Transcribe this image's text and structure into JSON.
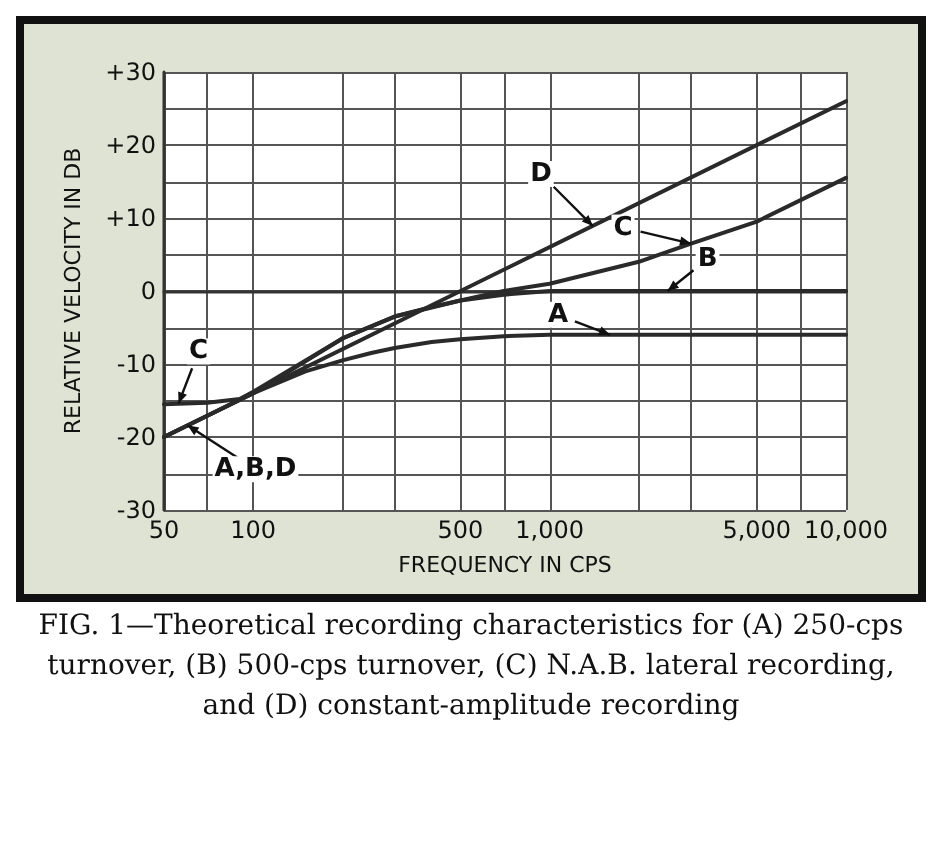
{
  "chart_data": {
    "type": "line",
    "xlabel": "FREQUENCY IN CPS",
    "ylabel": "RELATIVE VELOCITY IN DB",
    "log": "x",
    "grid": true,
    "marker": "none",
    "line_style": "solid",
    "xlim": [
      50,
      10000
    ],
    "xticks": [
      50,
      {
        "value": 70,
        "label": null
      },
      100,
      {
        "value": 200,
        "label": null
      },
      {
        "value": 300,
        "label": null
      },
      500,
      {
        "value": 700,
        "label": null
      },
      {
        "value": 1000,
        "label": "1,000"
      },
      {
        "value": 2000,
        "label": null
      },
      {
        "value": 3000,
        "label": null
      },
      {
        "value": 5000,
        "label": "5,000"
      },
      {
        "value": 7000,
        "label": null
      },
      {
        "value": 10000,
        "label": "10,000"
      }
    ],
    "ylim": [
      -30,
      30
    ],
    "yticks": [
      {
        "value": 30,
        "label": "+30"
      },
      {
        "value": 25,
        "label": null
      },
      {
        "value": 20,
        "label": "+20"
      },
      {
        "value": 15,
        "label": null
      },
      {
        "value": 10,
        "label": "+10"
      },
      {
        "value": 5,
        "label": null
      },
      0,
      {
        "value": -5,
        "label": null
      },
      -10,
      {
        "value": -15,
        "label": null
      },
      -20,
      {
        "value": -25,
        "label": null
      },
      -30
    ],
    "series": [
      {
        "color": "#2a2a2a",
        "x": [
          50,
          100,
          150,
          200,
          250,
          300,
          400,
          500,
          700,
          1000,
          2000,
          10000
        ],
        "values": [
          -20,
          -14,
          -11,
          -9.5,
          -8.5,
          -7.8,
          -7,
          -6.6,
          -6.2,
          -6,
          -6,
          -6
        ]
      },
      {
        "color": "#2a2a2a",
        "x": [
          50,
          100,
          200,
          300,
          400,
          500,
          700,
          1000,
          2000,
          10000
        ],
        "values": [
          -20,
          -14,
          -6.5,
          -3.5,
          -2.2,
          -1.3,
          -0.5,
          0,
          0,
          0
        ]
      },
      {
        "color": "#2a2a2a",
        "x": [
          50,
          70,
          90,
          100,
          200,
          300,
          500,
          700,
          1000,
          2000,
          3000,
          5000,
          10000
        ],
        "values": [
          -15.5,
          -15.3,
          -14.8,
          -13.8,
          -6.5,
          -3.5,
          -1.3,
          0,
          1,
          4,
          6.5,
          9.5,
          15.5
        ]
      },
      {
        "color": "#2a2a2a",
        "x": [
          50,
          10000
        ],
        "values": [
          -20,
          26
        ]
      }
    ],
    "annotations": [
      {
        "text": "D",
        "x": 1400,
        "y": 8.9
      },
      {
        "text": "C",
        "x": 3000,
        "y": 6.5
      },
      {
        "text": "B",
        "x": 2500,
        "y": 0
      },
      {
        "text": "A",
        "x": 1600,
        "y": -6
      },
      {
        "text": "C",
        "x": 56,
        "y": -15.4
      },
      {
        "text": "A,B,D",
        "x": 60,
        "y": -18.4
      },
      "FIG. 1—Theoretical recording characteristics for (A) 250-cps turnover, (B) 500-cps turnover, (C) N.A.B. lateral recording, and (D) constant-amplitude recording"
    ]
  }
}
